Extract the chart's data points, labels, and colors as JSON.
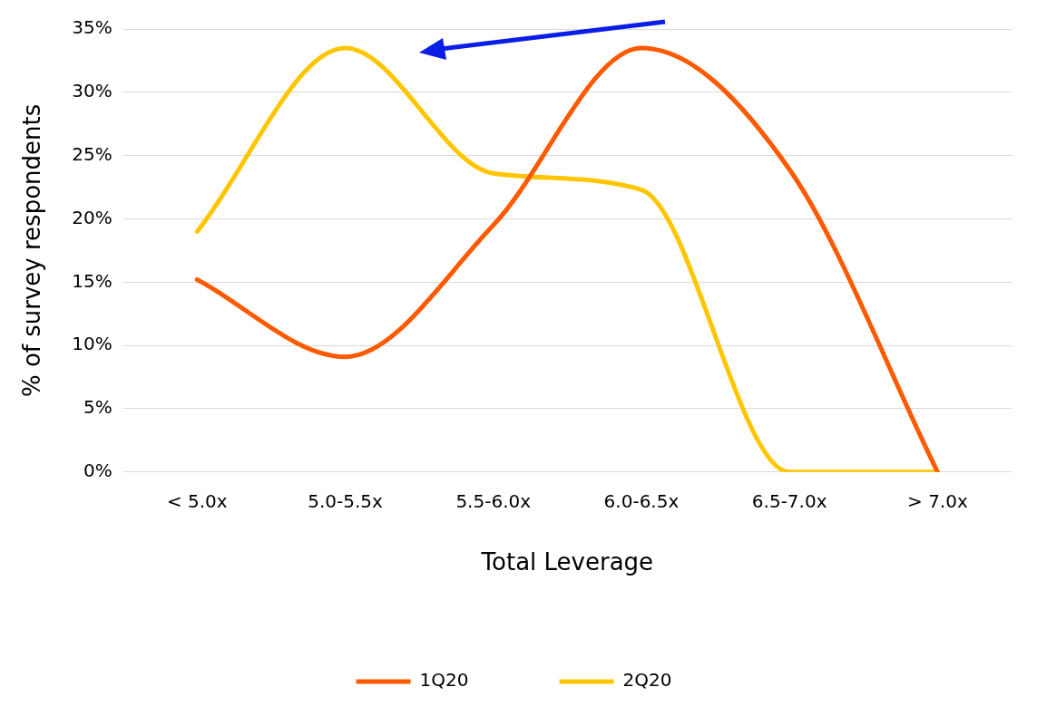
{
  "chart_data": {
    "type": "line",
    "xlabel": "Total Leverage",
    "ylabel": "% of survey respondents",
    "categories": [
      "< 5.0x",
      "5.0-5.5x",
      "5.5-6.0x",
      "6.0-6.5x",
      "6.5-7.0x",
      "> 7.0x"
    ],
    "series": [
      {
        "name": "1Q20",
        "color": "#ff5a00",
        "values": [
          15.2,
          9.1,
          19.5,
          33.5,
          23.9,
          0
        ]
      },
      {
        "name": "2Q20",
        "color": "#ffc600",
        "values": [
          19.0,
          33.5,
          23.6,
          22.3,
          0,
          0
        ]
      }
    ],
    "ylim": [
      0,
      35
    ],
    "yticks": [
      {
        "value": 0,
        "label": "0%"
      },
      {
        "value": 5,
        "label": "5%"
      },
      {
        "value": 10,
        "label": "10%"
      },
      {
        "value": 15,
        "label": "15%"
      },
      {
        "value": 20,
        "label": "20%"
      },
      {
        "value": 25,
        "label": "25%"
      },
      {
        "value": 30,
        "label": "30%"
      },
      {
        "value": 35,
        "label": "35%"
      }
    ],
    "grid": "y",
    "legend": "bottom",
    "marker": "none",
    "line_style": "solid"
  }
}
